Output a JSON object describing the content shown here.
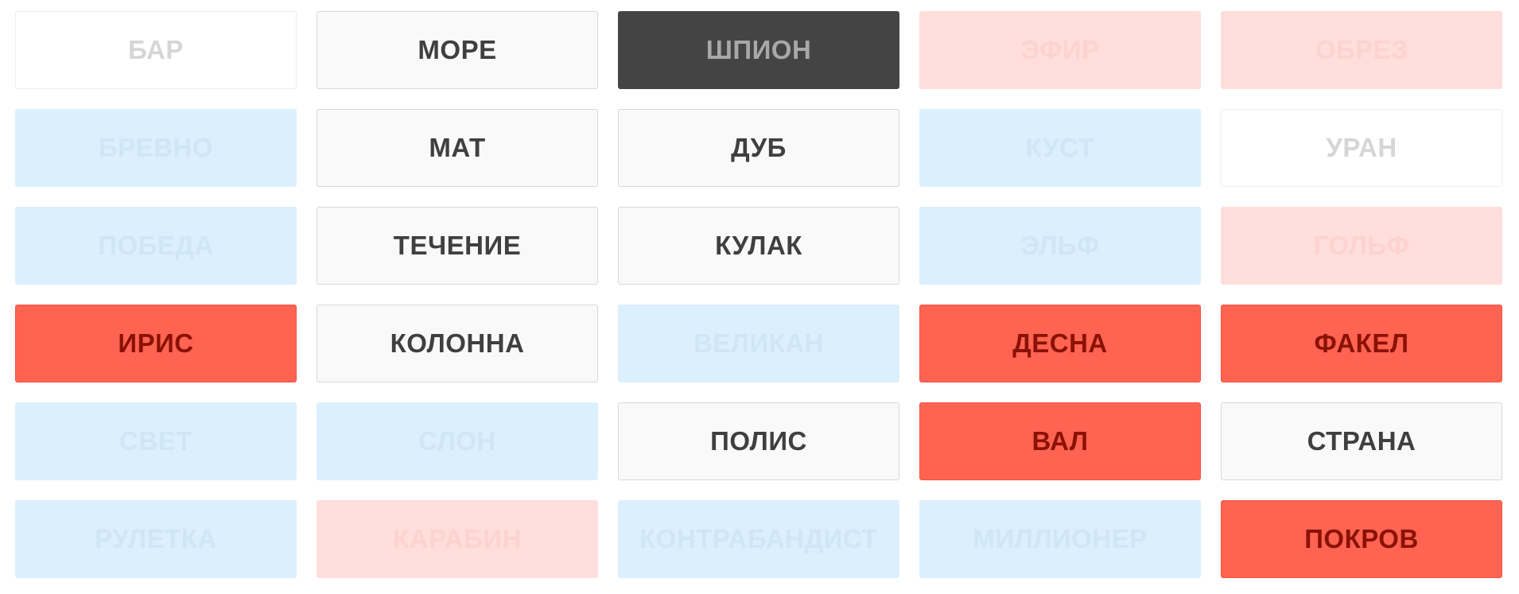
{
  "cards": [
    {
      "word": "БАР",
      "fill": "#ffffff",
      "border": "#eeeeee",
      "text_color": "#d6d6d6"
    },
    {
      "word": "МОРЕ",
      "fill": "#f9f9f9",
      "border": "#d8d8d8",
      "text_color": "#3f3f3f"
    },
    {
      "word": "ШПИОН",
      "fill": "#444444",
      "border": "#444444",
      "text_color": "#a8a8a8"
    },
    {
      "word": "ЭФИР",
      "fill": "#ffdedb",
      "border": "#ffdedb",
      "text_color": "#fcd3cf"
    },
    {
      "word": "ОБРЕЗ",
      "fill": "#ffdedb",
      "border": "#ffdedb",
      "text_color": "#fcd3cf"
    },
    {
      "word": "БРЕВНО",
      "fill": "#dbeffd",
      "border": "#dbeffd",
      "text_color": "#cfe6f6"
    },
    {
      "word": "МАТ",
      "fill": "#f9f9f9",
      "border": "#d8d8d8",
      "text_color": "#3f3f3f"
    },
    {
      "word": "ДУБ",
      "fill": "#f9f9f9",
      "border": "#d8d8d8",
      "text_color": "#3f3f3f"
    },
    {
      "word": "КУСТ",
      "fill": "#dbeffd",
      "border": "#dbeffd",
      "text_color": "#cfe6f6"
    },
    {
      "word": "УРАН",
      "fill": "#ffffff",
      "border": "#eeeeee",
      "text_color": "#d6d6d6"
    },
    {
      "word": "ПОБЕДА",
      "fill": "#dbeffd",
      "border": "#dbeffd",
      "text_color": "#cfe6f6"
    },
    {
      "word": "ТЕЧЕНИЕ",
      "fill": "#f9f9f9",
      "border": "#d8d8d8",
      "text_color": "#3f3f3f"
    },
    {
      "word": "КУЛАК",
      "fill": "#f9f9f9",
      "border": "#d8d8d8",
      "text_color": "#3f3f3f"
    },
    {
      "word": "ЭЛЬФ",
      "fill": "#dbeffd",
      "border": "#dbeffd",
      "text_color": "#cfe6f6"
    },
    {
      "word": "ГОЛЬФ",
      "fill": "#ffdedb",
      "border": "#ffdedb",
      "text_color": "#fcd3cf"
    },
    {
      "word": "ИРИС",
      "fill": "#ff6351",
      "border": "#ef5644",
      "text_color": "#8a1205"
    },
    {
      "word": "КОЛОННА",
      "fill": "#f9f9f9",
      "border": "#d8d8d8",
      "text_color": "#3f3f3f"
    },
    {
      "word": "ВЕЛИКАН",
      "fill": "#dbeffd",
      "border": "#dbeffd",
      "text_color": "#cfe6f6"
    },
    {
      "word": "ДЕСНА",
      "fill": "#ff6351",
      "border": "#ef5644",
      "text_color": "#8a1205"
    },
    {
      "word": "ФАКЕЛ",
      "fill": "#ff6351",
      "border": "#ef5644",
      "text_color": "#8a1205"
    },
    {
      "word": "СВЕТ",
      "fill": "#dbeffd",
      "border": "#dbeffd",
      "text_color": "#cfe6f6"
    },
    {
      "word": "СЛОН",
      "fill": "#dbeffd",
      "border": "#dbeffd",
      "text_color": "#cfe6f6"
    },
    {
      "word": "ПОЛИС",
      "fill": "#f9f9f9",
      "border": "#d8d8d8",
      "text_color": "#3f3f3f"
    },
    {
      "word": "ВАЛ",
      "fill": "#ff6351",
      "border": "#ef5644",
      "text_color": "#8a1205"
    },
    {
      "word": "СТРАНА",
      "fill": "#f9f9f9",
      "border": "#d8d8d8",
      "text_color": "#3f3f3f"
    },
    {
      "word": "РУЛЕТКА",
      "fill": "#dbeffd",
      "border": "#dbeffd",
      "text_color": "#cfe6f6"
    },
    {
      "word": "КАРАБИН",
      "fill": "#ffdedb",
      "border": "#ffdedb",
      "text_color": "#fcd3cf"
    },
    {
      "word": "КОНТРАБАНДИСТ",
      "fill": "#dbeffd",
      "border": "#dbeffd",
      "text_color": "#cfe6f6"
    },
    {
      "word": "МИЛЛИОНЕР",
      "fill": "#dbeffd",
      "border": "#dbeffd",
      "text_color": "#cfe6f6"
    },
    {
      "word": "ПОКРОВ",
      "fill": "#ff6351",
      "border": "#ef5644",
      "text_color": "#8a1205"
    }
  ]
}
